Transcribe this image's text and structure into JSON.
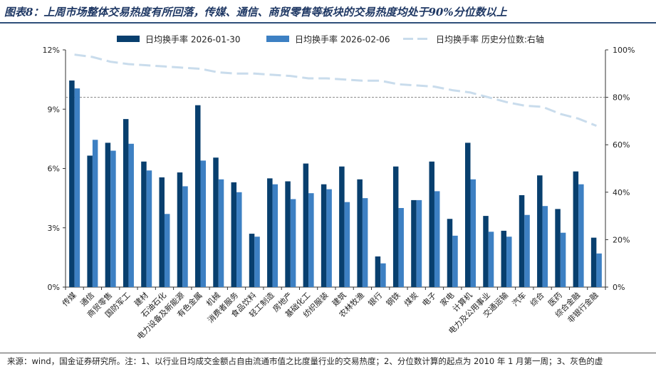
{
  "header": {
    "title": "图表8：上周市场整体交易热度有所回落，传媒、通信、商贸零售等板块的交易热度均处于90%分位数以上"
  },
  "footer": {
    "source": "来源：wind，国金证券研究所。注：1、以行业日均成交金额占自由流通市值之比度量行业的交易热度；2、分位数计算的起点为 2010 年 1 月第一周；3、灰色的虚"
  },
  "colors": {
    "series1": "#083f6e",
    "series2": "#3d80c3",
    "series3": "#c9dcec",
    "reference": "#888888"
  },
  "chart_data": {
    "type": "bar",
    "categories": [
      "传媒",
      "通信",
      "商贸零售",
      "国防军工",
      "建材",
      "石油石化",
      "电力设备及新能源",
      "有色金属",
      "机械",
      "消费者服务",
      "食品饮料",
      "轻工制造",
      "房地产",
      "基础化工",
      "纺织服装",
      "建筑",
      "农林牧渔",
      "银行",
      "钢铁",
      "煤炭",
      "电子",
      "家电",
      "计算机",
      "电力及公用事业",
      "交通运输",
      "汽车",
      "综合",
      "医药",
      "综合金融",
      "非银行金融"
    ],
    "series": [
      {
        "name": "日均换手率 2026-01-30",
        "type": "bar",
        "axis": "left",
        "values": [
          10.45,
          6.65,
          7.3,
          8.5,
          6.35,
          5.55,
          5.8,
          9.2,
          6.55,
          5.3,
          2.7,
          5.5,
          5.35,
          6.25,
          5.2,
          6.1,
          5.45,
          1.55,
          6.1,
          4.4,
          6.35,
          3.45,
          7.3,
          3.6,
          2.85,
          4.65,
          5.65,
          3.95,
          5.85,
          2.5
        ]
      },
      {
        "name": "日均换手率 2026-02-06",
        "type": "bar",
        "axis": "left",
        "values": [
          10.05,
          7.45,
          6.9,
          7.25,
          5.9,
          3.7,
          5.1,
          6.4,
          5.45,
          4.8,
          2.55,
          5.2,
          4.45,
          4.75,
          4.95,
          4.3,
          4.5,
          1.2,
          4.0,
          4.4,
          4.85,
          2.6,
          5.45,
          2.8,
          2.55,
          3.65,
          4.1,
          2.75,
          5.2,
          1.7
        ]
      },
      {
        "name": "日均换手率 历史分位数:右轴",
        "type": "line",
        "axis": "right",
        "values": [
          98,
          97,
          95,
          94,
          93.5,
          93,
          92.5,
          92,
          90.5,
          90,
          90,
          89.5,
          89,
          88,
          88,
          87.5,
          87,
          87,
          85.5,
          85,
          84.5,
          83,
          82,
          80,
          78,
          76.5,
          76,
          73,
          71,
          68
        ]
      }
    ],
    "reference_line": {
      "axis": "right",
      "value": 80,
      "style": "dashed",
      "color": "#888888"
    },
    "y_left": {
      "ylim": [
        0,
        12
      ],
      "ticks": [
        0,
        3,
        6,
        9,
        12
      ],
      "tick_labels": [
        "0%",
        "3%",
        "6%",
        "9%",
        "12%"
      ]
    },
    "y_right": {
      "ylim": [
        0,
        100
      ],
      "ticks": [
        0,
        20,
        40,
        60,
        80,
        100
      ],
      "tick_labels": [
        "0%",
        "20%",
        "40%",
        "60%",
        "80%",
        "100%"
      ]
    },
    "legend": {
      "position": "top"
    },
    "grid": false,
    "xlabel": "",
    "ylabel": ""
  }
}
